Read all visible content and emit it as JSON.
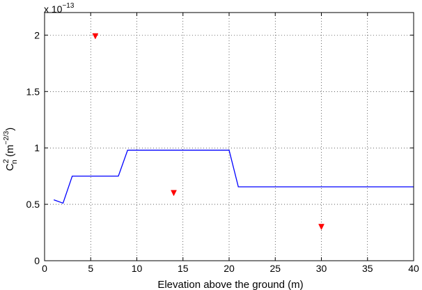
{
  "chart_data": {
    "type": "line",
    "xlabel": "Elevation above the ground (m)",
    "ylabel": {
      "base": "C",
      "sup": "2",
      "sub": "n",
      "unit_open": " (m",
      "unit_exp": "−2/3",
      "unit_close": ")"
    },
    "y_multiplier": {
      "prefix": "x 10",
      "exponent": "−13"
    },
    "xlim": [
      0,
      40
    ],
    "ylim": [
      0,
      2.2
    ],
    "x_ticks": [
      0,
      5,
      10,
      15,
      20,
      25,
      30,
      35,
      40
    ],
    "x_tick_labels": [
      "0",
      "5",
      "10",
      "15",
      "20",
      "25",
      "30",
      "35",
      "40"
    ],
    "y_ticks": [
      0,
      0.5,
      1,
      1.5,
      2
    ],
    "y_tick_labels": [
      "0",
      "0.5",
      "1",
      "1.5",
      "2"
    ],
    "grid": true,
    "grid_style": "dotted",
    "series": [
      {
        "kind": "line",
        "color": "#0000ff",
        "x": [
          1,
          2,
          3,
          8,
          9,
          20,
          21,
          40
        ],
        "y": [
          0.54,
          0.51,
          0.75,
          0.75,
          0.98,
          0.98,
          0.655,
          0.655
        ]
      },
      {
        "kind": "scatter",
        "marker": "triangle-down",
        "color": "#ff0000",
        "x": [
          5.5,
          14,
          30
        ],
        "y": [
          1.99,
          0.6,
          0.3
        ]
      }
    ]
  }
}
